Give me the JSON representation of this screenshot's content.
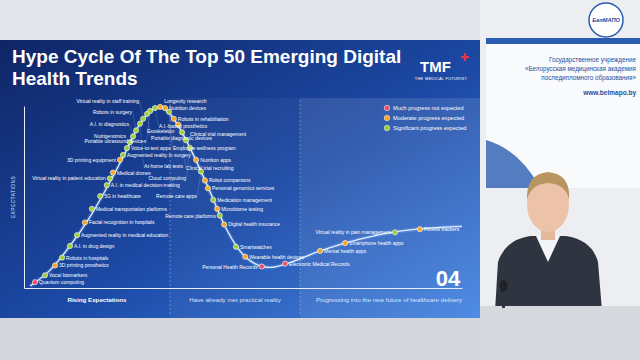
{
  "chart_data": {
    "type": "scatter",
    "title": "Hype Cycle Of The Top 50 Emerging Digital Health Trends",
    "ylabel": "EXPECTATIONS",
    "regions": [
      "Rising Expectations",
      "Have already met practical reality",
      "Progressing into the new future of healthcare delivery"
    ],
    "xlim": [
      0,
      100
    ],
    "ylim": [
      0,
      100
    ],
    "xticks": [],
    "yticks": [],
    "tick_labels": false,
    "grid": false,
    "legend": "upper right",
    "marker": "circle",
    "curve": {
      "x": [
        1.4,
        5.9,
        10.5,
        15.1,
        19.6,
        23.1,
        26.5,
        29.2,
        31.1,
        32.9,
        35.6,
        39.0,
        42.5,
        45.9,
        49.3,
        52.7,
        56.2,
        60.7,
        67.6,
        76.7,
        85.8,
        95.0,
        100
      ],
      "values": [
        1.1,
        9.7,
        23.1,
        39.2,
        58.1,
        74.2,
        90.3,
        97.8,
        99.5,
        96.8,
        87.6,
        71.5,
        52.7,
        33.9,
        20.4,
        13.4,
        11.3,
        14.0,
        20.4,
        26.9,
        31.2,
        33.3,
        33.9
      ]
    },
    "series": [
      {
        "name": "Much progress not expected",
        "color": "#e8506a",
        "x": [
          2.5,
          54.3,
          59.6
        ],
        "values": [
          3.2,
          11.8,
          13.4
        ],
        "labels": [
          "Quantum computing",
          "Personal Health Records",
          "Electronic Medical Records"
        ]
      },
      {
        "name": "Moderate progress expected",
        "color": "#f5a623",
        "x": [
          7.1,
          13.9,
          20.3,
          21.9,
          31.1,
          32.2,
          34.2,
          35.2,
          39.3,
          41.3,
          42.0,
          44.1,
          45.7,
          50.5,
          67.6,
          73.3,
          90.4
        ],
        "values": [
          12.4,
          36.0,
          63.4,
          70.4,
          99.5,
          98.9,
          93.0,
          89.8,
          70.4,
          59.1,
          54.8,
          43.5,
          34.9,
          17.2,
          20.4,
          24.7,
          32.3
        ],
        "labels": [
          "3D printing prosthetics",
          "Facial recognition in hospitals",
          "Medical drones",
          "3D printing equipment",
          "Longevity research",
          "Nutrition devices",
          "Robots in rehabilitation",
          "Exoskeleton",
          "Nutrition apps",
          "Robot companions",
          "Personal genomics services",
          "Microbiome testing",
          "Digital health insurance",
          "Wearable health devices",
          "Mental health apps",
          "Smartphone health apps",
          "Fitness trackers"
        ]
      },
      {
        "name": "Significant progress expected",
        "color": "#9ccc3c",
        "x": [
          4.8,
          8.7,
          10.5,
          12.1,
          15.5,
          17.4,
          18.9,
          19.6,
          22.6,
          23.5,
          24.2,
          24.9,
          25.6,
          26.5,
          27.2,
          28.1,
          28.8,
          29.9,
          33.1,
          36.1,
          37.0,
          37.9,
          40.4,
          43.2,
          44.7,
          48.4,
          84.7
        ],
        "values": [
          7.0,
          16.7,
          23.1,
          29.0,
          43.5,
          50.5,
          56.5,
          60.2,
          73.1,
          76.9,
          80.1,
          83.3,
          86.6,
          90.3,
          93.0,
          95.7,
          97.3,
          98.9,
          96.8,
          85.5,
          81.2,
          76.9,
          64.0,
          48.4,
          39.8,
          22.6,
          30.6
        ],
        "labels": [
          "Vocal biomarkers",
          "Robots in hospitals",
          "A.I. in drug design",
          "Augmented reality in medical education",
          "Medical transportation platforms",
          "5G in healthcare",
          "A.I. in medical decision-making",
          "Virtual reality in patient education",
          "Augmented reality in surgery",
          "Voice-to-text apps",
          "Nutrigenomics",
          "A.I. in diagnostics",
          "Robots in surgery",
          "At-home lab tests",
          "Virtual reality in staff training",
          "Portable diagnostic devices",
          "Portable ultrasound devices",
          "A.I.-based prosthetics",
          "Employee wellness program",
          "Clinical trial recruiting",
          "Clinical trial management",
          "Cloud computing",
          "Remote care apps",
          "Medication management",
          "Remote care platforms",
          "Smartwatches",
          "Virtual reality in pain management"
        ]
      }
    ]
  },
  "slide": {
    "number": "04",
    "logo": "TMF",
    "logo_subtitle": "THE MEDICAL FUTURIST"
  },
  "room": {
    "emblem": "БелМАПО",
    "banner": [
      "Государственное учреждение",
      "«Белорусская медицинская академия",
      "последипломного образования»"
    ],
    "website": "www.belmapo.by"
  }
}
